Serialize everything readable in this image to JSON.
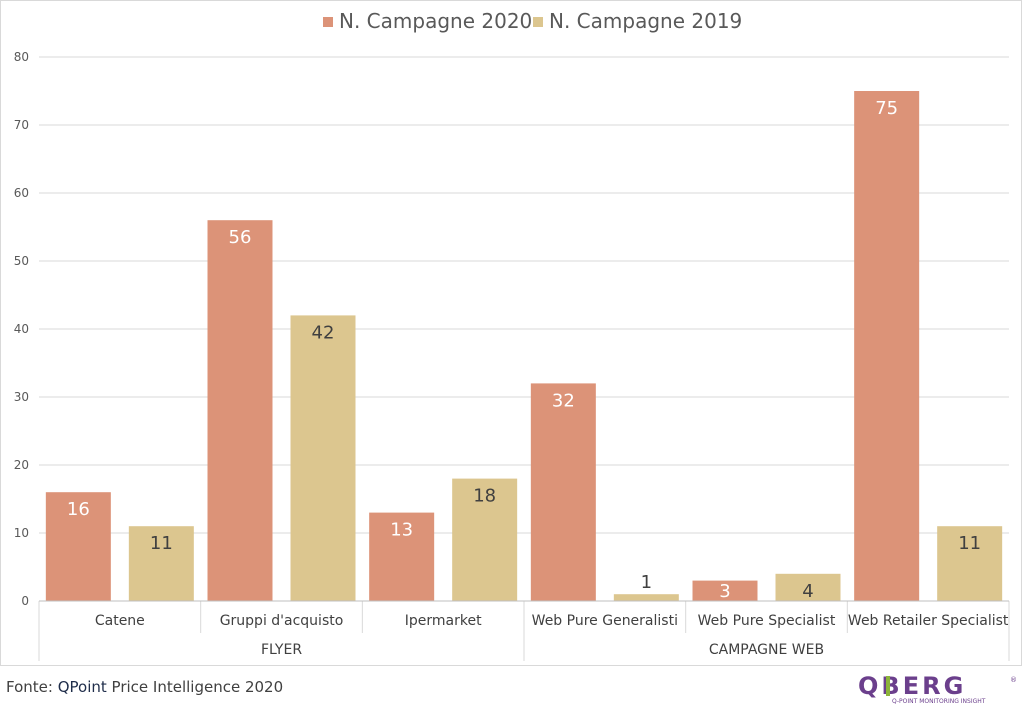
{
  "chart_data": {
    "type": "bar",
    "title": "",
    "xlabel": "",
    "ylabel": "",
    "ylim": [
      0,
      80
    ],
    "yticks": [
      0,
      10,
      20,
      30,
      40,
      50,
      60,
      70,
      80
    ],
    "grid": true,
    "legend_position": "top",
    "categories": [
      "Catene",
      "Gruppi d'acquisto",
      "Ipermarket",
      "Web Pure Generalisti",
      "Web Pure Specialist",
      "Web Retailer Specialist"
    ],
    "groups": [
      {
        "label": "FLYER",
        "categories": [
          "Catene",
          "Gruppi d'acquisto",
          "Ipermarket"
        ]
      },
      {
        "label": "CAMPAGNE WEB",
        "categories": [
          "Web Pure Generalisti",
          "Web Pure Specialist",
          "Web Retailer Specialist"
        ]
      }
    ],
    "series": [
      {
        "name": "N. Campagne 2020",
        "color": "#dc9378",
        "label_color": "#ffffff",
        "values": [
          16,
          56,
          13,
          32,
          3,
          75
        ]
      },
      {
        "name": "N. Campagne 2019",
        "color": "#dcc68f",
        "label_color": "#404040",
        "values": [
          11,
          42,
          18,
          1,
          4,
          11
        ]
      }
    ]
  },
  "footer": {
    "source_prefix": "Fonte: ",
    "source_brand": "QPoint",
    "source_rest": " Price Intelligence 2020"
  },
  "logo": {
    "wordmark": "QBERG",
    "tagline": "Q-POINT MONITORING INSIGHT",
    "colors": {
      "purple": "#6b3f8c",
      "green": "#8cb33a"
    }
  }
}
